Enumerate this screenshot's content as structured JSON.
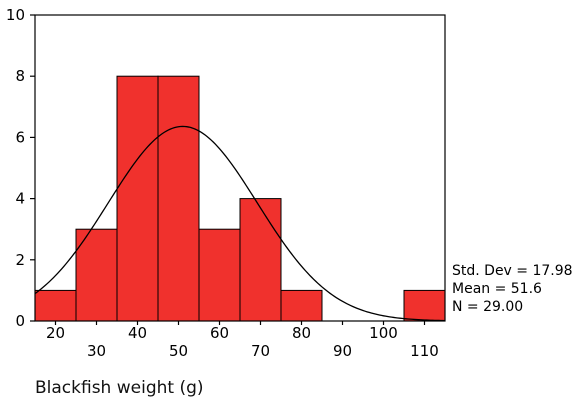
{
  "chart_data": {
    "type": "bar",
    "subtype": "histogram",
    "bins": [
      {
        "start": 15,
        "end": 25,
        "count": 1
      },
      {
        "start": 25,
        "end": 35,
        "count": 3
      },
      {
        "start": 35,
        "end": 45,
        "count": 8
      },
      {
        "start": 45,
        "end": 55,
        "count": 8
      },
      {
        "start": 55,
        "end": 65,
        "count": 3
      },
      {
        "start": 65,
        "end": 75,
        "count": 4
      },
      {
        "start": 75,
        "end": 85,
        "count": 1
      },
      {
        "start": 85,
        "end": 95,
        "count": 0
      },
      {
        "start": 95,
        "end": 105,
        "count": 0
      },
      {
        "start": 105,
        "end": 115,
        "count": 1
      }
    ],
    "xlabel": "Blackfish weight (g)",
    "ylabel": "",
    "xlim": [
      15,
      115
    ],
    "ylim": [
      0,
      10
    ],
    "yticks": [
      "0",
      "2",
      "4",
      "6",
      "8",
      "10"
    ],
    "xticks": [
      "20",
      "30",
      "40",
      "50",
      "60",
      "70",
      "80",
      "90",
      "100",
      "110"
    ],
    "normal_curve": true,
    "bar_color": "#f0312d",
    "grid": false,
    "stats": {
      "std_dev": "Std. Dev = 17.98",
      "mean": "Mean = 51.6",
      "n": "N = 29.00"
    }
  }
}
